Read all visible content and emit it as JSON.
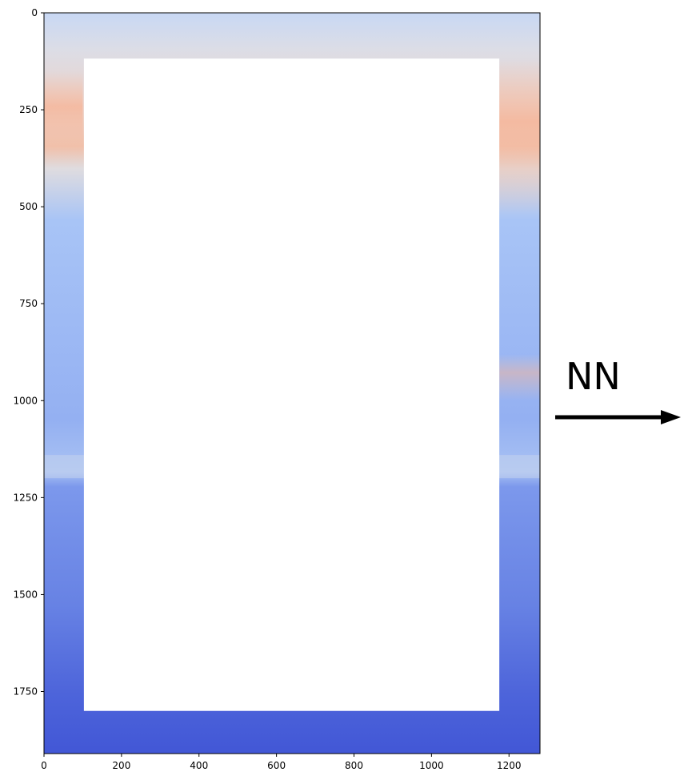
{
  "chart_data": {
    "type": "heatmap",
    "title": "",
    "xlabel": "",
    "ylabel": "",
    "colormap": "coolwarm",
    "xlim": [
      0,
      1280
    ],
    "ylim": [
      1910,
      0
    ],
    "x_ticks": [
      0,
      200,
      400,
      600,
      800,
      1000,
      1200
    ],
    "y_ticks": [
      0,
      250,
      500,
      750,
      1000,
      1250,
      1500,
      1750
    ],
    "x_tick_labels": [
      "0",
      "200",
      "400",
      "600",
      "800",
      "1000",
      "1200"
    ],
    "y_tick_labels": [
      "0",
      "250",
      "500",
      "750",
      "1000",
      "1250",
      "1500",
      "1750"
    ],
    "masked_region": {
      "x": [
        103,
        1175
      ],
      "y": [
        118,
        1800
      ]
    },
    "annotation": {
      "text": "NN",
      "arrow_direction": "right"
    },
    "colors": {
      "warm": "#f2b49a",
      "neutral": "#dcdde6",
      "light_blue": "#a8c4f6",
      "mid_blue": "#7896ec",
      "deep_blue": "#4257d6"
    }
  }
}
